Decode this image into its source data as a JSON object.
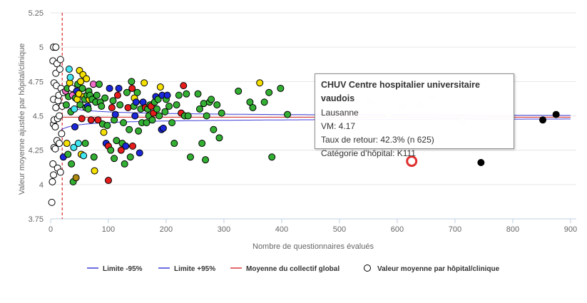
{
  "chart_data": {
    "type": "scatter",
    "xlabel": "Nombre de questionnaires évalués",
    "ylabel": "Valeur moyenne ajustée par hôpital/clinique",
    "xlim": [
      0,
      910
    ],
    "ylim": [
      3.75,
      5.25
    ],
    "x_ticks": [
      "0",
      "100",
      "200",
      "300",
      "400",
      "500",
      "600",
      "700",
      "800",
      "900"
    ],
    "y_ticks": [
      "3.75",
      "4",
      "4.25",
      "4.5",
      "4.75",
      "5",
      "5.25"
    ],
    "grid": "horizontal",
    "legend_position": "bottom",
    "mean": 4.49,
    "min_n_line_x": 20,
    "colors": {
      "limit_lines": "#3d3dd8",
      "mean_line": "#d93a3a",
      "min_n_line": "#cc0000",
      "highlight": "#e03030"
    },
    "category_colors": {
      "white": "#ffffff",
      "cyan": "#44e6f2",
      "yellow": "#f5e000",
      "pink": "#f06cc8",
      "green": "#33b033",
      "blue": "#1a28d9",
      "red": "#e61c1c",
      "olive": "#b08a10",
      "black": "#000000"
    },
    "legend": [
      {
        "label": "Limite -95%",
        "kind": "line",
        "color": "#3d3dd8"
      },
      {
        "label": "Limite +95%",
        "kind": "line",
        "color": "#3d3dd8"
      },
      {
        "label": "Moyenne du collectif global",
        "kind": "line",
        "color": "#d93a3a"
      },
      {
        "label": "Valeur moyenne par hôpital/clinique",
        "kind": "marker",
        "color": "#000000"
      }
    ],
    "points": [
      {
        "x": 2,
        "y": 3.87,
        "c": "white"
      },
      {
        "x": 3,
        "y": 4.02,
        "c": "white"
      },
      {
        "x": 4,
        "y": 4.15,
        "c": "white"
      },
      {
        "x": 5,
        "y": 4.07,
        "c": "white"
      },
      {
        "x": 6,
        "y": 4.27,
        "c": "white"
      },
      {
        "x": 5,
        "y": 4.44,
        "c": "white"
      },
      {
        "x": 6,
        "y": 4.47,
        "c": "white"
      },
      {
        "x": 5,
        "y": 4.62,
        "c": "white"
      },
      {
        "x": 6,
        "y": 4.74,
        "c": "white"
      },
      {
        "x": 4,
        "y": 4.9,
        "c": "white"
      },
      {
        "x": 5,
        "y": 5.0,
        "c": "white"
      },
      {
        "x": 8,
        "y": 4.26,
        "c": "white"
      },
      {
        "x": 8,
        "y": 4.42,
        "c": "white"
      },
      {
        "x": 9,
        "y": 4.56,
        "c": "white"
      },
      {
        "x": 9,
        "y": 4.81,
        "c": "white"
      },
      {
        "x": 9,
        "y": 5.0,
        "c": "white"
      },
      {
        "x": 10,
        "y": 4.72,
        "c": "white"
      },
      {
        "x": 11,
        "y": 4.32,
        "c": "white"
      },
      {
        "x": 11,
        "y": 4.88,
        "c": "white"
      },
      {
        "x": 12,
        "y": 4.12,
        "c": "white"
      },
      {
        "x": 12,
        "y": 4.48,
        "c": "white"
      },
      {
        "x": 13,
        "y": 4.61,
        "c": "white"
      },
      {
        "x": 14,
        "y": 4.65,
        "c": "white"
      },
      {
        "x": 15,
        "y": 4.3,
        "c": "white"
      },
      {
        "x": 15,
        "y": 4.5,
        "c": "white"
      },
      {
        "x": 16,
        "y": 4.84,
        "c": "white"
      },
      {
        "x": 17,
        "y": 4.91,
        "c": "white"
      },
      {
        "x": 17,
        "y": 4.09,
        "c": "white"
      },
      {
        "x": 18,
        "y": 4.7,
        "c": "white"
      },
      {
        "x": 19,
        "y": 4.37,
        "c": "white"
      },
      {
        "x": 20,
        "y": 4.57,
        "c": "white"
      },
      {
        "x": 22,
        "y": 4.67,
        "c": "white"
      },
      {
        "x": 22,
        "y": 4.2,
        "c": "blue"
      },
      {
        "x": 26,
        "y": 4.68,
        "c": "pink"
      },
      {
        "x": 27,
        "y": 4.58,
        "c": "green"
      },
      {
        "x": 28,
        "y": 4.3,
        "c": "yellow"
      },
      {
        "x": 29,
        "y": 4.7,
        "c": "green"
      },
      {
        "x": 30,
        "y": 4.22,
        "c": "green"
      },
      {
        "x": 31,
        "y": 4.64,
        "c": "green"
      },
      {
        "x": 32,
        "y": 4.84,
        "c": "cyan"
      },
      {
        "x": 33,
        "y": 4.74,
        "c": "yellow"
      },
      {
        "x": 34,
        "y": 4.78,
        "c": "cyan"
      },
      {
        "x": 35,
        "y": 4.53,
        "c": "green"
      },
      {
        "x": 36,
        "y": 4.15,
        "c": "green"
      },
      {
        "x": 37,
        "y": 4.7,
        "c": "white"
      },
      {
        "x": 38,
        "y": 4.65,
        "c": "pink"
      },
      {
        "x": 39,
        "y": 4.02,
        "c": "green"
      },
      {
        "x": 40,
        "y": 4.27,
        "c": "cyan"
      },
      {
        "x": 41,
        "y": 4.55,
        "c": "cyan"
      },
      {
        "x": 42,
        "y": 4.42,
        "c": "blue"
      },
      {
        "x": 43,
        "y": 4.63,
        "c": "green"
      },
      {
        "x": 44,
        "y": 4.05,
        "c": "olive"
      },
      {
        "x": 45,
        "y": 4.68,
        "c": "blue"
      },
      {
        "x": 46,
        "y": 4.62,
        "c": "yellow"
      },
      {
        "x": 47,
        "y": 4.73,
        "c": "green"
      },
      {
        "x": 48,
        "y": 4.3,
        "c": "cyan"
      },
      {
        "x": 49,
        "y": 4.66,
        "c": "yellow"
      },
      {
        "x": 50,
        "y": 4.83,
        "c": "yellow"
      },
      {
        "x": 51,
        "y": 4.58,
        "c": "green"
      },
      {
        "x": 52,
        "y": 4.75,
        "c": "yellow"
      },
      {
        "x": 53,
        "y": 4.22,
        "c": "yellow"
      },
      {
        "x": 54,
        "y": 4.48,
        "c": "red"
      },
      {
        "x": 55,
        "y": 4.7,
        "c": "green"
      },
      {
        "x": 56,
        "y": 4.8,
        "c": "yellow"
      },
      {
        "x": 57,
        "y": 4.21,
        "c": "cyan"
      },
      {
        "x": 58,
        "y": 4.64,
        "c": "yellow"
      },
      {
        "x": 59,
        "y": 4.62,
        "c": "green"
      },
      {
        "x": 60,
        "y": 4.3,
        "c": "green"
      },
      {
        "x": 61,
        "y": 4.56,
        "c": "green"
      },
      {
        "x": 62,
        "y": 4.77,
        "c": "yellow"
      },
      {
        "x": 63,
        "y": 4.65,
        "c": "green"
      },
      {
        "x": 64,
        "y": 4.57,
        "c": "blue"
      },
      {
        "x": 65,
        "y": 4.55,
        "c": "green"
      },
      {
        "x": 66,
        "y": 4.68,
        "c": "green"
      },
      {
        "x": 67,
        "y": 4.62,
        "c": "yellow"
      },
      {
        "x": 68,
        "y": 4.65,
        "c": "green"
      },
      {
        "x": 70,
        "y": 4.47,
        "c": "red"
      },
      {
        "x": 72,
        "y": 4.62,
        "c": "green"
      },
      {
        "x": 74,
        "y": 4.73,
        "c": "pink"
      },
      {
        "x": 75,
        "y": 4.2,
        "c": "green"
      },
      {
        "x": 76,
        "y": 4.1,
        "c": "yellow"
      },
      {
        "x": 78,
        "y": 4.6,
        "c": "green"
      },
      {
        "x": 80,
        "y": 4.65,
        "c": "green"
      },
      {
        "x": 82,
        "y": 4.47,
        "c": "red"
      },
      {
        "x": 84,
        "y": 4.73,
        "c": "green"
      },
      {
        "x": 86,
        "y": 4.6,
        "c": "green"
      },
      {
        "x": 88,
        "y": 4.57,
        "c": "green"
      },
      {
        "x": 90,
        "y": 4.44,
        "c": "green"
      },
      {
        "x": 92,
        "y": 4.38,
        "c": "yellow"
      },
      {
        "x": 94,
        "y": 4.63,
        "c": "green"
      },
      {
        "x": 96,
        "y": 4.3,
        "c": "blue"
      },
      {
        "x": 98,
        "y": 4.43,
        "c": "green"
      },
      {
        "x": 100,
        "y": 4.03,
        "c": "red"
      },
      {
        "x": 100,
        "y": 4.28,
        "c": "red"
      },
      {
        "x": 102,
        "y": 4.7,
        "c": "blue"
      },
      {
        "x": 104,
        "y": 4.25,
        "c": "green"
      },
      {
        "x": 106,
        "y": 4.56,
        "c": "red"
      },
      {
        "x": 108,
        "y": 4.61,
        "c": "green"
      },
      {
        "x": 110,
        "y": 4.47,
        "c": "green"
      },
      {
        "x": 110,
        "y": 4.19,
        "c": "green"
      },
      {
        "x": 112,
        "y": 4.51,
        "c": "blue"
      },
      {
        "x": 114,
        "y": 4.32,
        "c": "green"
      },
      {
        "x": 116,
        "y": 4.65,
        "c": "red"
      },
      {
        "x": 118,
        "y": 4.7,
        "c": "blue"
      },
      {
        "x": 120,
        "y": 4.58,
        "c": "green"
      },
      {
        "x": 122,
        "y": 4.25,
        "c": "red"
      },
      {
        "x": 124,
        "y": 4.3,
        "c": "green"
      },
      {
        "x": 126,
        "y": 4.45,
        "c": "green"
      },
      {
        "x": 128,
        "y": 4.15,
        "c": "green"
      },
      {
        "x": 130,
        "y": 4.28,
        "c": "blue"
      },
      {
        "x": 132,
        "y": 4.67,
        "c": "green"
      },
      {
        "x": 134,
        "y": 4.56,
        "c": "red"
      },
      {
        "x": 136,
        "y": 4.4,
        "c": "green"
      },
      {
        "x": 138,
        "y": 4.2,
        "c": "green"
      },
      {
        "x": 140,
        "y": 4.75,
        "c": "green"
      },
      {
        "x": 141,
        "y": 4.7,
        "c": "red"
      },
      {
        "x": 142,
        "y": 4.28,
        "c": "red"
      },
      {
        "x": 144,
        "y": 4.57,
        "c": "green"
      },
      {
        "x": 145,
        "y": 4.63,
        "c": "yellow"
      },
      {
        "x": 146,
        "y": 4.5,
        "c": "blue"
      },
      {
        "x": 148,
        "y": 4.6,
        "c": "blue"
      },
      {
        "x": 150,
        "y": 4.67,
        "c": "green"
      },
      {
        "x": 152,
        "y": 4.39,
        "c": "green"
      },
      {
        "x": 154,
        "y": 4.23,
        "c": "blue"
      },
      {
        "x": 156,
        "y": 4.55,
        "c": "green"
      },
      {
        "x": 158,
        "y": 4.45,
        "c": "green"
      },
      {
        "x": 160,
        "y": 4.6,
        "c": "blue"
      },
      {
        "x": 162,
        "y": 4.74,
        "c": "yellow"
      },
      {
        "x": 164,
        "y": 4.56,
        "c": "red"
      },
      {
        "x": 166,
        "y": 4.45,
        "c": "green"
      },
      {
        "x": 168,
        "y": 4.55,
        "c": "green"
      },
      {
        "x": 170,
        "y": 4.5,
        "c": "green"
      },
      {
        "x": 172,
        "y": 4.58,
        "c": "green"
      },
      {
        "x": 174,
        "y": 4.57,
        "c": "red"
      },
      {
        "x": 176,
        "y": 4.47,
        "c": "green"
      },
      {
        "x": 178,
        "y": 4.52,
        "c": "red"
      },
      {
        "x": 180,
        "y": 4.6,
        "c": "green"
      },
      {
        "x": 182,
        "y": 4.64,
        "c": "blue"
      },
      {
        "x": 184,
        "y": 4.55,
        "c": "green"
      },
      {
        "x": 186,
        "y": 4.62,
        "c": "green"
      },
      {
        "x": 188,
        "y": 4.5,
        "c": "green"
      },
      {
        "x": 190,
        "y": 4.71,
        "c": "yellow"
      },
      {
        "x": 192,
        "y": 4.4,
        "c": "blue"
      },
      {
        "x": 193,
        "y": 4.65,
        "c": "blue"
      },
      {
        "x": 195,
        "y": 4.41,
        "c": "blue"
      },
      {
        "x": 198,
        "y": 4.53,
        "c": "green"
      },
      {
        "x": 200,
        "y": 4.62,
        "c": "green"
      },
      {
        "x": 202,
        "y": 4.65,
        "c": "blue"
      },
      {
        "x": 205,
        "y": 4.57,
        "c": "green"
      },
      {
        "x": 210,
        "y": 4.45,
        "c": "green"
      },
      {
        "x": 214,
        "y": 4.3,
        "c": "green"
      },
      {
        "x": 218,
        "y": 4.58,
        "c": "green"
      },
      {
        "x": 222,
        "y": 4.65,
        "c": "green"
      },
      {
        "x": 226,
        "y": 4.52,
        "c": "red"
      },
      {
        "x": 230,
        "y": 4.72,
        "c": "red"
      },
      {
        "x": 232,
        "y": 4.5,
        "c": "green"
      },
      {
        "x": 235,
        "y": 4.66,
        "c": "green"
      },
      {
        "x": 238,
        "y": 4.5,
        "c": "green"
      },
      {
        "x": 242,
        "y": 4.2,
        "c": "green"
      },
      {
        "x": 255,
        "y": 4.66,
        "c": "green"
      },
      {
        "x": 258,
        "y": 4.55,
        "c": "green"
      },
      {
        "x": 262,
        "y": 4.3,
        "c": "green"
      },
      {
        "x": 265,
        "y": 4.59,
        "c": "green"
      },
      {
        "x": 268,
        "y": 4.18,
        "c": "green"
      },
      {
        "x": 270,
        "y": 4.5,
        "c": "green"
      },
      {
        "x": 275,
        "y": 4.6,
        "c": "green"
      },
      {
        "x": 278,
        "y": 4.62,
        "c": "green"
      },
      {
        "x": 282,
        "y": 4.4,
        "c": "green"
      },
      {
        "x": 288,
        "y": 4.58,
        "c": "green"
      },
      {
        "x": 292,
        "y": 4.34,
        "c": "green"
      },
      {
        "x": 296,
        "y": 4.52,
        "c": "green"
      },
      {
        "x": 325,
        "y": 4.68,
        "c": "green"
      },
      {
        "x": 345,
        "y": 4.6,
        "c": "green"
      },
      {
        "x": 350,
        "y": 4.56,
        "c": "green"
      },
      {
        "x": 362,
        "y": 4.74,
        "c": "yellow"
      },
      {
        "x": 370,
        "y": 4.6,
        "c": "green"
      },
      {
        "x": 378,
        "y": 4.67,
        "c": "green"
      },
      {
        "x": 383,
        "y": 4.2,
        "c": "green"
      },
      {
        "x": 398,
        "y": 4.7,
        "c": "green"
      },
      {
        "x": 410,
        "y": 4.51,
        "c": "green"
      },
      {
        "x": 745,
        "y": 4.16,
        "c": "black"
      },
      {
        "x": 852,
        "y": 4.47,
        "c": "black"
      },
      {
        "x": 875,
        "y": 4.51,
        "c": "black"
      }
    ],
    "faded_points": [
      {
        "x": 552,
        "y": 4.6
      },
      {
        "x": 585,
        "y": 4.51
      },
      {
        "x": 608,
        "y": 4.57
      },
      {
        "x": 640,
        "y": 4.58
      },
      {
        "x": 660,
        "y": 4.64
      },
      {
        "x": 712,
        "y": 4.46
      }
    ],
    "highlight_point": {
      "x": 625,
      "y": 4.17
    },
    "tooltip": {
      "title": "CHUV Centre hospitalier universitaire vaudois",
      "city": "Lausanne",
      "vm": "VM: 4.17",
      "return_rate": "Taux de retour: 42.3% (n 625)",
      "category": "Catégorie d’hôpital: K111"
    }
  }
}
